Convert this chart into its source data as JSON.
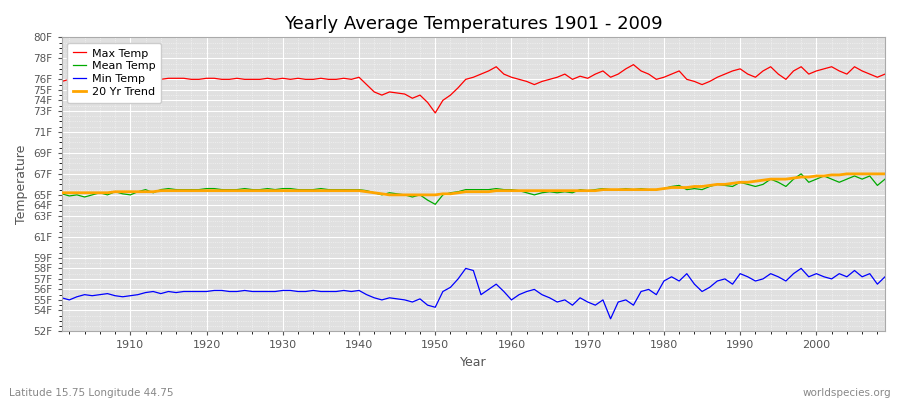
{
  "title": "Yearly Average Temperatures 1901 - 2009",
  "xlabel": "Year",
  "ylabel": "Temperature",
  "subtitle_left": "Latitude 15.75 Longitude 44.75",
  "subtitle_right": "worldspecies.org",
  "years": [
    1901,
    1902,
    1903,
    1904,
    1905,
    1906,
    1907,
    1908,
    1909,
    1910,
    1911,
    1912,
    1913,
    1914,
    1915,
    1916,
    1917,
    1918,
    1919,
    1920,
    1921,
    1922,
    1923,
    1924,
    1925,
    1926,
    1927,
    1928,
    1929,
    1930,
    1931,
    1932,
    1933,
    1934,
    1935,
    1936,
    1937,
    1938,
    1939,
    1940,
    1941,
    1942,
    1943,
    1944,
    1945,
    1946,
    1947,
    1948,
    1949,
    1950,
    1951,
    1952,
    1953,
    1954,
    1955,
    1956,
    1957,
    1958,
    1959,
    1960,
    1961,
    1962,
    1963,
    1964,
    1965,
    1966,
    1967,
    1968,
    1969,
    1970,
    1971,
    1972,
    1973,
    1974,
    1975,
    1976,
    1977,
    1978,
    1979,
    1980,
    1981,
    1982,
    1983,
    1984,
    1985,
    1986,
    1987,
    1988,
    1989,
    1990,
    1991,
    1992,
    1993,
    1994,
    1995,
    1996,
    1997,
    1998,
    1999,
    2000,
    2001,
    2002,
    2003,
    2004,
    2005,
    2006,
    2007,
    2008,
    2009
  ],
  "max_temp": [
    75.8,
    76.0,
    75.9,
    76.0,
    76.0,
    76.0,
    76.1,
    76.0,
    76.0,
    76.0,
    76.0,
    75.9,
    76.0,
    76.0,
    76.1,
    76.1,
    76.1,
    76.0,
    76.0,
    76.1,
    76.1,
    76.0,
    76.0,
    76.1,
    76.0,
    76.0,
    76.0,
    76.1,
    76.0,
    76.1,
    76.0,
    76.1,
    76.0,
    76.0,
    76.1,
    76.0,
    76.0,
    76.1,
    76.0,
    76.2,
    75.5,
    74.8,
    74.5,
    74.8,
    74.7,
    74.6,
    74.2,
    74.5,
    73.8,
    72.8,
    74.0,
    74.5,
    75.2,
    76.0,
    76.2,
    76.5,
    76.8,
    77.2,
    76.5,
    76.2,
    76.0,
    75.8,
    75.5,
    75.8,
    76.0,
    76.2,
    76.5,
    76.0,
    76.3,
    76.1,
    76.5,
    76.8,
    76.2,
    76.5,
    77.0,
    77.4,
    76.8,
    76.5,
    76.0,
    76.2,
    76.5,
    76.8,
    76.0,
    75.8,
    75.5,
    75.8,
    76.2,
    76.5,
    76.8,
    77.0,
    76.5,
    76.2,
    76.8,
    77.2,
    76.5,
    76.0,
    76.8,
    77.2,
    76.5,
    76.8,
    77.0,
    77.2,
    76.8,
    76.5,
    77.2,
    76.8,
    76.5,
    76.2,
    76.5
  ],
  "mean_temp": [
    65.1,
    64.9,
    65.0,
    64.8,
    65.0,
    65.2,
    65.0,
    65.3,
    65.1,
    65.0,
    65.3,
    65.5,
    65.2,
    65.5,
    65.6,
    65.5,
    65.5,
    65.5,
    65.5,
    65.6,
    65.6,
    65.5,
    65.5,
    65.5,
    65.6,
    65.5,
    65.5,
    65.6,
    65.5,
    65.6,
    65.6,
    65.5,
    65.5,
    65.5,
    65.6,
    65.5,
    65.5,
    65.5,
    65.5,
    65.5,
    65.4,
    65.2,
    65.0,
    65.2,
    65.1,
    65.0,
    64.8,
    65.0,
    64.5,
    64.1,
    65.0,
    65.2,
    65.3,
    65.5,
    65.5,
    65.5,
    65.5,
    65.6,
    65.5,
    65.5,
    65.4,
    65.2,
    65.0,
    65.2,
    65.3,
    65.2,
    65.3,
    65.2,
    65.5,
    65.4,
    65.5,
    65.6,
    65.5,
    65.5,
    65.6,
    65.5,
    65.6,
    65.5,
    65.5,
    65.6,
    65.8,
    65.9,
    65.5,
    65.6,
    65.5,
    65.8,
    66.0,
    65.9,
    65.8,
    66.2,
    66.0,
    65.8,
    66.0,
    66.5,
    66.2,
    65.8,
    66.5,
    67.0,
    66.2,
    66.5,
    66.8,
    66.5,
    66.2,
    66.5,
    66.8,
    66.5,
    66.8,
    65.9,
    66.5
  ],
  "min_temp": [
    55.2,
    55.0,
    55.3,
    55.5,
    55.4,
    55.5,
    55.6,
    55.4,
    55.3,
    55.4,
    55.5,
    55.7,
    55.8,
    55.6,
    55.8,
    55.7,
    55.8,
    55.8,
    55.8,
    55.8,
    55.9,
    55.9,
    55.8,
    55.8,
    55.9,
    55.8,
    55.8,
    55.8,
    55.8,
    55.9,
    55.9,
    55.8,
    55.8,
    55.9,
    55.8,
    55.8,
    55.8,
    55.9,
    55.8,
    55.9,
    55.5,
    55.2,
    55.0,
    55.2,
    55.1,
    55.0,
    54.8,
    55.1,
    54.5,
    54.3,
    55.8,
    56.2,
    57.0,
    58.0,
    57.8,
    55.5,
    56.0,
    56.5,
    55.8,
    55.0,
    55.5,
    55.8,
    56.0,
    55.5,
    55.2,
    54.8,
    55.0,
    54.5,
    55.2,
    54.8,
    54.5,
    55.0,
    53.2,
    54.8,
    55.0,
    54.5,
    55.8,
    56.0,
    55.5,
    56.8,
    57.2,
    56.8,
    57.5,
    56.5,
    55.8,
    56.2,
    56.8,
    57.0,
    56.5,
    57.5,
    57.2,
    56.8,
    57.0,
    57.5,
    57.2,
    56.8,
    57.5,
    58.0,
    57.2,
    57.5,
    57.2,
    57.0,
    57.5,
    57.2,
    57.8,
    57.2,
    57.5,
    56.5,
    57.2
  ],
  "trend": [
    65.2,
    65.2,
    65.2,
    65.2,
    65.2,
    65.2,
    65.2,
    65.3,
    65.3,
    65.3,
    65.3,
    65.3,
    65.3,
    65.4,
    65.4,
    65.4,
    65.4,
    65.4,
    65.4,
    65.4,
    65.4,
    65.4,
    65.4,
    65.4,
    65.4,
    65.4,
    65.4,
    65.4,
    65.4,
    65.4,
    65.4,
    65.4,
    65.4,
    65.4,
    65.4,
    65.4,
    65.4,
    65.4,
    65.4,
    65.4,
    65.3,
    65.2,
    65.1,
    65.0,
    65.0,
    65.0,
    65.0,
    65.0,
    65.0,
    65.0,
    65.1,
    65.1,
    65.2,
    65.3,
    65.3,
    65.3,
    65.3,
    65.4,
    65.4,
    65.4,
    65.4,
    65.4,
    65.4,
    65.4,
    65.4,
    65.4,
    65.4,
    65.4,
    65.4,
    65.4,
    65.4,
    65.5,
    65.5,
    65.5,
    65.5,
    65.5,
    65.5,
    65.5,
    65.5,
    65.6,
    65.7,
    65.7,
    65.7,
    65.8,
    65.8,
    65.9,
    66.0,
    66.0,
    66.1,
    66.2,
    66.2,
    66.3,
    66.4,
    66.5,
    66.5,
    66.5,
    66.6,
    66.7,
    66.7,
    66.8,
    66.8,
    66.9,
    66.9,
    67.0,
    67.0,
    67.0,
    67.0,
    67.0,
    67.0
  ],
  "colors": {
    "max_temp": "#ff0000",
    "mean_temp": "#00aa00",
    "min_temp": "#0000ff",
    "trend": "#ffa500",
    "fig_bg": "#ffffff",
    "plot_bg": "#e0e0e0",
    "grid": "#ffffff",
    "text": "#555555"
  },
  "ytick_labels": [
    "52F",
    "54F",
    "55F",
    "56F",
    "57F",
    "58F",
    "59F",
    "61F",
    "63F",
    "64F",
    "65F",
    "67F",
    "69F",
    "71F",
    "73F",
    "74F",
    "75F",
    "76F",
    "78F",
    "80F"
  ],
  "ytick_values": [
    52,
    54,
    55,
    56,
    57,
    58,
    59,
    61,
    63,
    64,
    65,
    67,
    69,
    71,
    73,
    74,
    75,
    76,
    78,
    80
  ],
  "ylim": [
    52,
    80
  ],
  "xlim": [
    1901,
    2009
  ],
  "xticks": [
    1910,
    1920,
    1930,
    1940,
    1950,
    1960,
    1970,
    1980,
    1990,
    2000
  ]
}
